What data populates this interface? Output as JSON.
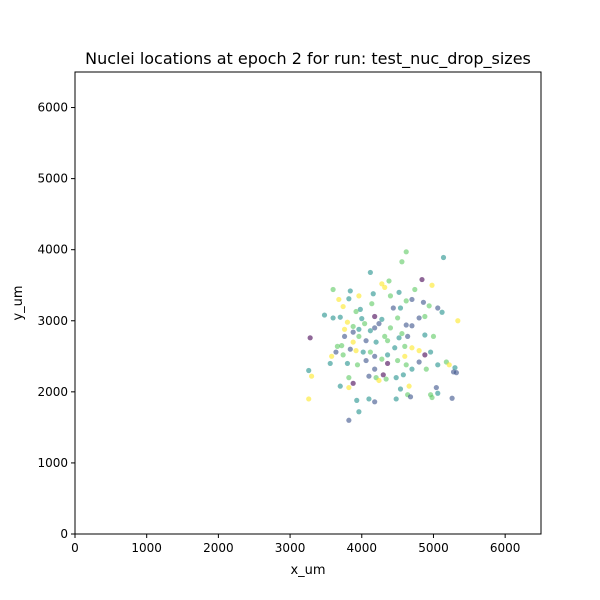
{
  "chart_data": {
    "type": "scatter",
    "title": "Nuclei locations at epoch 2 for run: test_nuc_drop_sizes",
    "xlabel": "x_um",
    "ylabel": "y_um",
    "xlim": [
      0,
      6500
    ],
    "ylim": [
      0,
      6500
    ],
    "xticks": [
      "0",
      "1000",
      "2000",
      "3000",
      "4000",
      "5000",
      "6000"
    ],
    "yticks": [
      "0",
      "1000",
      "2000",
      "3000",
      "4000",
      "5000",
      "6000"
    ],
    "grid": false,
    "legend": "none",
    "colormap": [
      "#440154",
      "#3b528b",
      "#21918c",
      "#5ec962",
      "#fde725"
    ],
    "marker_opacity": 0.6,
    "points": [
      [
        4620,
        3970,
        0.7
      ],
      [
        5140,
        3890,
        0.5
      ],
      [
        4560,
        3830,
        0.6
      ],
      [
        4120,
        3680,
        0.4
      ],
      [
        4380,
        3560,
        0.6
      ],
      [
        4280,
        3520,
        0.9
      ],
      [
        4840,
        3580,
        0.1
      ],
      [
        4320,
        3470,
        0.8
      ],
      [
        3600,
        3440,
        0.6
      ],
      [
        3840,
        3420,
        0.4
      ],
      [
        4980,
        3500,
        0.9
      ],
      [
        4520,
        3400,
        0.4
      ],
      [
        4160,
        3380,
        0.5
      ],
      [
        4400,
        3350,
        0.7
      ],
      [
        4700,
        3300,
        0.3
      ],
      [
        3680,
        3300,
        0.8
      ],
      [
        3820,
        3310,
        0.5
      ],
      [
        4620,
        3280,
        0.6
      ],
      [
        4860,
        3260,
        0.3
      ],
      [
        3740,
        3200,
        0.8
      ],
      [
        3480,
        3080,
        0.4
      ],
      [
        4940,
        3210,
        0.6
      ],
      [
        5060,
        3180,
        0.3
      ],
      [
        5120,
        3120,
        0.5
      ],
      [
        4440,
        3180,
        0.2
      ],
      [
        3980,
        3160,
        0.4
      ],
      [
        3920,
        3130,
        0.6
      ],
      [
        4180,
        3060,
        0.1
      ],
      [
        4280,
        3020,
        0.5
      ],
      [
        4500,
        3040,
        0.7
      ],
      [
        4800,
        3040,
        0.3
      ],
      [
        5340,
        3000,
        0.9
      ],
      [
        3600,
        3040,
        0.5
      ],
      [
        3700,
        3050,
        0.4
      ],
      [
        4040,
        2960,
        0.6
      ],
      [
        3800,
        2980,
        0.8
      ],
      [
        4620,
        2940,
        0.2
      ],
      [
        4700,
        2930,
        0.3
      ],
      [
        3880,
        2920,
        0.7
      ],
      [
        4180,
        2900,
        0.3
      ],
      [
        3760,
        2880,
        0.9
      ],
      [
        3960,
        2880,
        0.5
      ],
      [
        4400,
        2900,
        0.6
      ],
      [
        4120,
        2860,
        0.4
      ],
      [
        3880,
        2840,
        0.2
      ],
      [
        4560,
        2820,
        0.7
      ],
      [
        3960,
        2780,
        0.6
      ],
      [
        4520,
        2760,
        0.4
      ],
      [
        4320,
        2780,
        0.7
      ],
      [
        3280,
        2760,
        0.1
      ],
      [
        4640,
        2780,
        0.3
      ],
      [
        4880,
        2800,
        0.5
      ],
      [
        5000,
        2780,
        0.6
      ],
      [
        4060,
        2720,
        0.3
      ],
      [
        4200,
        2700,
        0.5
      ],
      [
        4360,
        2720,
        0.6
      ],
      [
        3880,
        2700,
        0.8
      ],
      [
        3720,
        2650,
        0.7
      ],
      [
        4600,
        2640,
        0.7
      ],
      [
        4700,
        2620,
        0.9
      ],
      [
        3840,
        2600,
        0.2
      ],
      [
        4020,
        2560,
        0.4
      ],
      [
        4120,
        2560,
        0.6
      ],
      [
        4800,
        2580,
        0.8
      ],
      [
        4960,
        2560,
        0.5
      ],
      [
        4180,
        2500,
        0.3
      ],
      [
        4360,
        2520,
        0.5
      ],
      [
        3640,
        2560,
        0.3
      ],
      [
        3580,
        2500,
        0.9
      ],
      [
        3740,
        2520,
        0.6
      ],
      [
        4880,
        2520,
        0.1
      ],
      [
        5180,
        2420,
        0.7
      ],
      [
        5220,
        2380,
        0.8
      ],
      [
        5300,
        2340,
        0.5
      ],
      [
        5060,
        2380,
        0.4
      ],
      [
        4500,
        2440,
        0.6
      ],
      [
        4800,
        2420,
        0.3
      ],
      [
        4360,
        2400,
        0.1
      ],
      [
        4620,
        2380,
        0.7
      ],
      [
        3800,
        2400,
        0.4
      ],
      [
        3560,
        2400,
        0.5
      ],
      [
        3940,
        2380,
        0.7
      ],
      [
        4180,
        2320,
        0.3
      ],
      [
        4700,
        2320,
        0.5
      ],
      [
        3260,
        2300,
        0.4
      ],
      [
        4900,
        2320,
        0.6
      ],
      [
        5320,
        2270,
        0.3
      ],
      [
        5280,
        2280,
        0.2
      ],
      [
        3300,
        2220,
        0.9
      ],
      [
        4100,
        2220,
        0.3
      ],
      [
        4200,
        2200,
        0.6
      ],
      [
        4340,
        2180,
        0.7
      ],
      [
        4300,
        2240,
        0.1
      ],
      [
        4480,
        2200,
        0.5
      ],
      [
        4580,
        2240,
        0.4
      ],
      [
        3820,
        2200,
        0.6
      ],
      [
        3880,
        2120,
        0.1
      ],
      [
        4660,
        2080,
        0.9
      ],
      [
        5040,
        2060,
        0.3
      ],
      [
        3700,
        2080,
        0.5
      ],
      [
        4240,
        2160,
        0.8
      ],
      [
        3820,
        2060,
        0.9
      ],
      [
        4540,
        2040,
        0.5
      ],
      [
        4640,
        1960,
        0.6
      ],
      [
        4680,
        1930,
        0.3
      ],
      [
        4960,
        1960,
        0.7
      ],
      [
        5060,
        1980,
        0.5
      ],
      [
        4980,
        1920,
        0.6
      ],
      [
        5260,
        1910,
        0.3
      ],
      [
        3930,
        1880,
        0.4
      ],
      [
        4100,
        1900,
        0.5
      ],
      [
        4180,
        1860,
        0.3
      ],
      [
        4480,
        1900,
        0.4
      ],
      [
        3260,
        1900,
        0.9
      ],
      [
        3960,
        1720,
        0.5
      ],
      [
        3820,
        1600,
        0.3
      ],
      [
        3660,
        2640,
        0.6
      ],
      [
        4000,
        3030,
        0.5
      ],
      [
        4240,
        2960,
        0.3
      ],
      [
        3920,
        2580,
        0.8
      ],
      [
        4460,
        2620,
        0.4
      ],
      [
        4060,
        2440,
        0.2
      ],
      [
        4280,
        2460,
        0.6
      ],
      [
        4600,
        2500,
        0.8
      ],
      [
        3760,
        2780,
        0.3
      ],
      [
        4140,
        3240,
        0.7
      ],
      [
        3960,
        3350,
        0.9
      ],
      [
        4740,
        3440,
        0.6
      ],
      [
        4540,
        3180,
        0.4
      ],
      [
        4880,
        3060,
        0.7
      ]
    ]
  }
}
